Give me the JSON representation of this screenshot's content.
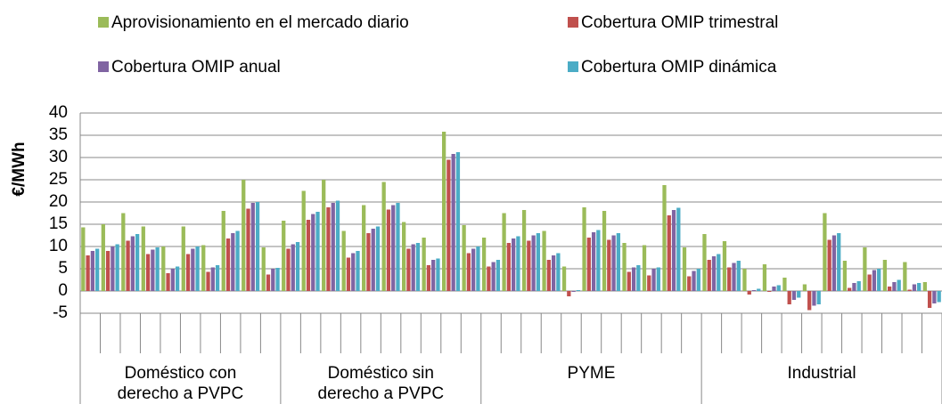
{
  "chart_data": {
    "type": "bar",
    "ylabel": "€/MWh",
    "ylim": [
      -5,
      40
    ],
    "yticks": [
      -5,
      0,
      5,
      10,
      15,
      20,
      25,
      30,
      35,
      40
    ],
    "grid": true,
    "legend": "top",
    "groups": [
      {
        "label": [
          "Doméstico con",
          "derecho a PVPC"
        ],
        "categories": [
          null,
          null,
          null,
          null,
          null,
          null,
          null,
          null,
          null,
          null
        ]
      },
      {
        "label": [
          "Doméstico sin",
          "derecho a PVPC"
        ],
        "categories": [
          null,
          null,
          null,
          null,
          null,
          null,
          null,
          null,
          null,
          null
        ]
      },
      {
        "label": [
          "PYME"
        ],
        "categories": [
          null,
          null,
          null,
          null,
          null,
          null,
          null,
          null,
          null,
          null,
          null
        ]
      },
      {
        "label": [
          "Industrial"
        ],
        "categories": [
          null,
          null,
          null,
          null,
          null,
          null,
          null,
          null,
          null,
          null,
          null,
          null
        ]
      }
    ],
    "series": [
      {
        "name": "Aprovisionamiento en el mercado diario",
        "color": "#9bbb59",
        "values": [
          14.3,
          15,
          17.5,
          14.5,
          10,
          14.5,
          10.3,
          18,
          25,
          9.8,
          15.8,
          22.5,
          25,
          13.5,
          19.3,
          24.5,
          15.5,
          12,
          35.8,
          14.8,
          12,
          17.5,
          18.2,
          13.5,
          5.5,
          18.8,
          18,
          10.8,
          10.3,
          23.8,
          9.8,
          12.8,
          11.2,
          5,
          6,
          3,
          1.5,
          17.5,
          6.8,
          9.8,
          7,
          6.5,
          2
        ]
      },
      {
        "name": "Cobertura OMIP trimestral",
        "color": "#c0504d",
        "values": [
          8,
          9,
          11.3,
          8.3,
          4,
          8.3,
          4.3,
          11.8,
          18.5,
          3.7,
          9.5,
          16,
          18.8,
          7.5,
          13,
          18.3,
          9.5,
          5.8,
          29.5,
          8.5,
          5.5,
          10.8,
          11.3,
          7,
          -1.2,
          12,
          11.5,
          4.3,
          3.5,
          17,
          3.3,
          7,
          5.3,
          -0.8,
          -0.2,
          -3,
          -4.3,
          11.5,
          0.7,
          3.7,
          1,
          0.3,
          -3.8
        ]
      },
      {
        "name": "Cobertura OMIP anual",
        "color": "#8064a2",
        "values": [
          9,
          10,
          12.3,
          9.3,
          5,
          9.5,
          5.3,
          13,
          19.8,
          5,
          10.5,
          17.3,
          19.8,
          8.5,
          14,
          19.3,
          10.5,
          7,
          30.8,
          9.5,
          6.5,
          11.8,
          12.5,
          8,
          -0.2,
          13.2,
          12.5,
          5.3,
          5,
          18.2,
          4.5,
          7.8,
          6.3,
          0.2,
          1,
          -2,
          -3.3,
          12.5,
          1.8,
          4.7,
          2,
          1.5,
          -2.8
        ]
      },
      {
        "name": "Cobertura OMIP dinámica",
        "color": "#4bacc6",
        "values": [
          9.5,
          10.5,
          12.8,
          9.8,
          5.5,
          10,
          5.8,
          13.5,
          20,
          5.2,
          11,
          17.8,
          20.3,
          9,
          14.5,
          19.8,
          10.8,
          7.3,
          31.2,
          10,
          7,
          12.3,
          13,
          8.5,
          0.2,
          13.7,
          13,
          5.8,
          5.3,
          18.7,
          5,
          8.3,
          6.8,
          0.5,
          1.3,
          -1.5,
          -3,
          13,
          2.2,
          5,
          2.5,
          1.8,
          -2.5
        ]
      }
    ]
  }
}
